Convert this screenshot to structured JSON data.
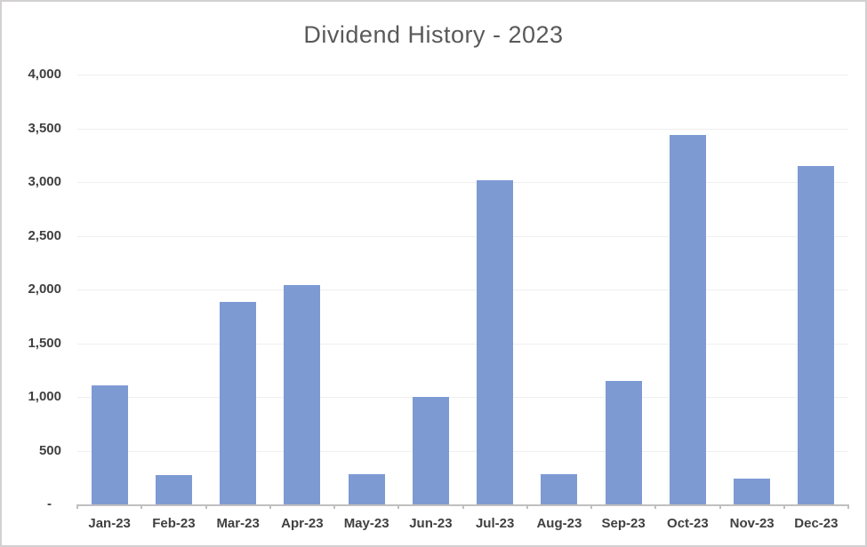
{
  "chart_data": {
    "type": "bar",
    "title": "Dividend History - 2023",
    "categories": [
      "Jan-23",
      "Feb-23",
      "Mar-23",
      "Apr-23",
      "May-23",
      "Jun-23",
      "Jul-23",
      "Aug-23",
      "Sep-23",
      "Oct-23",
      "Nov-23",
      "Dec-23"
    ],
    "values": [
      1105,
      275,
      1885,
      2040,
      285,
      1000,
      3020,
      285,
      1145,
      3435,
      240,
      3145
    ],
    "xlabel": "",
    "ylabel": "",
    "ylim": [
      0,
      4000
    ],
    "y_tick_step": 500,
    "y_tick_labels": [
      "4,000",
      "3,500",
      "3,000",
      "2,500",
      "2,000",
      "1,500",
      "1,000",
      "500",
      "-"
    ],
    "grid": true,
    "legend": "none",
    "colors": {
      "bar": "#7d9ad3",
      "title": "#595959",
      "axis_label": "#404040",
      "gridline": "#efefef",
      "axis_line": "#bfbfbf",
      "canvas_border": "#d2d0d0",
      "background": "#ffffff"
    }
  }
}
